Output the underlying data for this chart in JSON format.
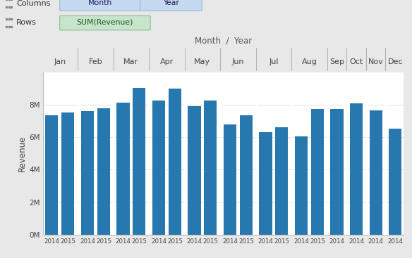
{
  "title": "Month  /  Year",
  "ylabel": "Revenue",
  "bar_color": "#2878b0",
  "plot_bg_color": "#ffffff",
  "outer_bg_color": "#e8e8e8",
  "header_bg_color": "#f5f5f5",
  "grid_color": "#dddddd",
  "months": [
    "Jan",
    "Feb",
    "Mar",
    "Apr",
    "May",
    "Jun",
    "Jul",
    "Aug",
    "Sep",
    "Oct",
    "Nov",
    "Dec"
  ],
  "bars": [
    {
      "month": "Jan",
      "year": "2014",
      "value": 7350000
    },
    {
      "month": "Jan",
      "year": "2015",
      "value": 7520000
    },
    {
      "month": "Feb",
      "year": "2014",
      "value": 7600000
    },
    {
      "month": "Feb",
      "year": "2015",
      "value": 7800000
    },
    {
      "month": "Mar",
      "year": "2014",
      "value": 8150000
    },
    {
      "month": "Mar",
      "year": "2015",
      "value": 9050000
    },
    {
      "month": "Apr",
      "year": "2014",
      "value": 8280000
    },
    {
      "month": "Apr",
      "year": "2015",
      "value": 9000000
    },
    {
      "month": "May",
      "year": "2014",
      "value": 7900000
    },
    {
      "month": "May",
      "year": "2015",
      "value": 8250000
    },
    {
      "month": "Jun",
      "year": "2014",
      "value": 6800000
    },
    {
      "month": "Jun",
      "year": "2015",
      "value": 7370000
    },
    {
      "month": "Jul",
      "year": "2014",
      "value": 6330000
    },
    {
      "month": "Jul",
      "year": "2015",
      "value": 6620000
    },
    {
      "month": "Aug",
      "year": "2014",
      "value": 6060000
    },
    {
      "month": "Aug",
      "year": "2015",
      "value": 7730000
    },
    {
      "month": "Sep",
      "year": "2014",
      "value": 7730000
    },
    {
      "month": "Oct",
      "year": "2014",
      "value": 8100000
    },
    {
      "month": "Nov",
      "year": "2014",
      "value": 7650000
    },
    {
      "month": "Dec",
      "year": "2014",
      "value": 6520000
    }
  ],
  "ylim": [
    0,
    10000000
  ],
  "yticks": [
    0,
    2000000,
    4000000,
    6000000,
    8000000
  ],
  "ytick_labels": [
    "0M",
    "2M",
    "4M",
    "6M",
    "8M"
  ],
  "pill_blue_face": "#c5d9f0",
  "pill_blue_edge": "#97b9d9",
  "pill_green_face": "#c6e5cc",
  "pill_green_edge": "#8bbf92",
  "month_label_color": "#444444",
  "title_color": "#555555",
  "sep_line_color": "#b0b0b0"
}
